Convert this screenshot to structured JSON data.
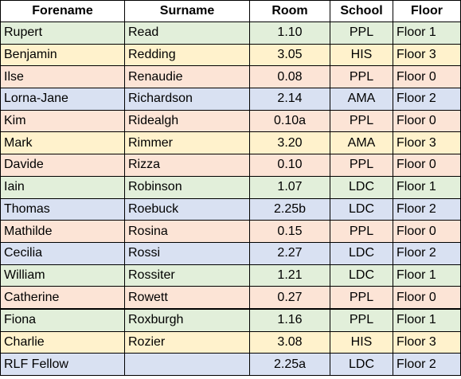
{
  "headers": [
    "Forename",
    "Surname",
    "Room",
    "School",
    "Floor"
  ],
  "colors": {
    "green": "#E2EFDA",
    "yellow": "#FFF2CC",
    "red": "#FCE4D6",
    "blue": "#D9E1F2"
  },
  "rows": [
    {
      "forename": "Rupert",
      "surname": "Read",
      "room": "1.10",
      "school": "PPL",
      "floor": "Floor 1",
      "color": "green"
    },
    {
      "forename": "Benjamin",
      "surname": "Redding",
      "room": "3.05",
      "school": "HIS",
      "floor": "Floor 3",
      "color": "yellow"
    },
    {
      "forename": "Ilse",
      "surname": "Renaudie",
      "room": "0.08",
      "school": "PPL",
      "floor": "Floor 0",
      "color": "red"
    },
    {
      "forename": "Lorna-Jane",
      "surname": "Richardson",
      "room": "2.14",
      "school": "AMA",
      "floor": "Floor 2",
      "color": "blue"
    },
    {
      "forename": "Kim",
      "surname": "Ridealgh",
      "room": "0.10a",
      "school": "PPL",
      "floor": "Floor 0",
      "color": "red"
    },
    {
      "forename": "Mark",
      "surname": "Rimmer",
      "room": "3.20",
      "school": "AMA",
      "floor": "Floor 3",
      "color": "yellow"
    },
    {
      "forename": "Davide",
      "surname": "Rizza",
      "room": "0.10",
      "school": "PPL",
      "floor": "Floor 0",
      "color": "red"
    },
    {
      "forename": "Iain",
      "surname": "Robinson",
      "room": "1.07",
      "school": "LDC",
      "floor": "Floor 1",
      "color": "green"
    },
    {
      "forename": "Thomas",
      "surname": "Roebuck",
      "room": "2.25b",
      "school": "LDC",
      "floor": "Floor 2",
      "color": "blue"
    },
    {
      "forename": "Mathilde",
      "surname": "Rosina",
      "room": "0.15",
      "school": "PPL",
      "floor": "Floor 0",
      "color": "red"
    },
    {
      "forename": "Cecilia",
      "surname": "Rossi",
      "room": "2.27",
      "school": "LDC",
      "floor": "Floor 2",
      "color": "blue"
    },
    {
      "forename": "William",
      "surname": "Rossiter",
      "room": "1.21",
      "school": "LDC",
      "floor": "Floor 1",
      "color": "green"
    },
    {
      "forename": "Catherine",
      "surname": "Rowett",
      "room": "0.27",
      "school": "PPL",
      "floor": "Floor 0",
      "color": "red"
    },
    {
      "forename": "Fiona",
      "surname": "Roxburgh",
      "room": "1.16",
      "school": "PPL",
      "floor": "Floor 1",
      "color": "green"
    },
    {
      "forename": "Charlie",
      "surname": "Rozier",
      "room": "3.08",
      "school": "HIS",
      "floor": "Floor 3",
      "color": "yellow"
    },
    {
      "forename": "RLF Fellow",
      "surname": "",
      "room": "2.25a",
      "school": "LDC",
      "floor": "Floor 2",
      "color": "blue"
    }
  ]
}
